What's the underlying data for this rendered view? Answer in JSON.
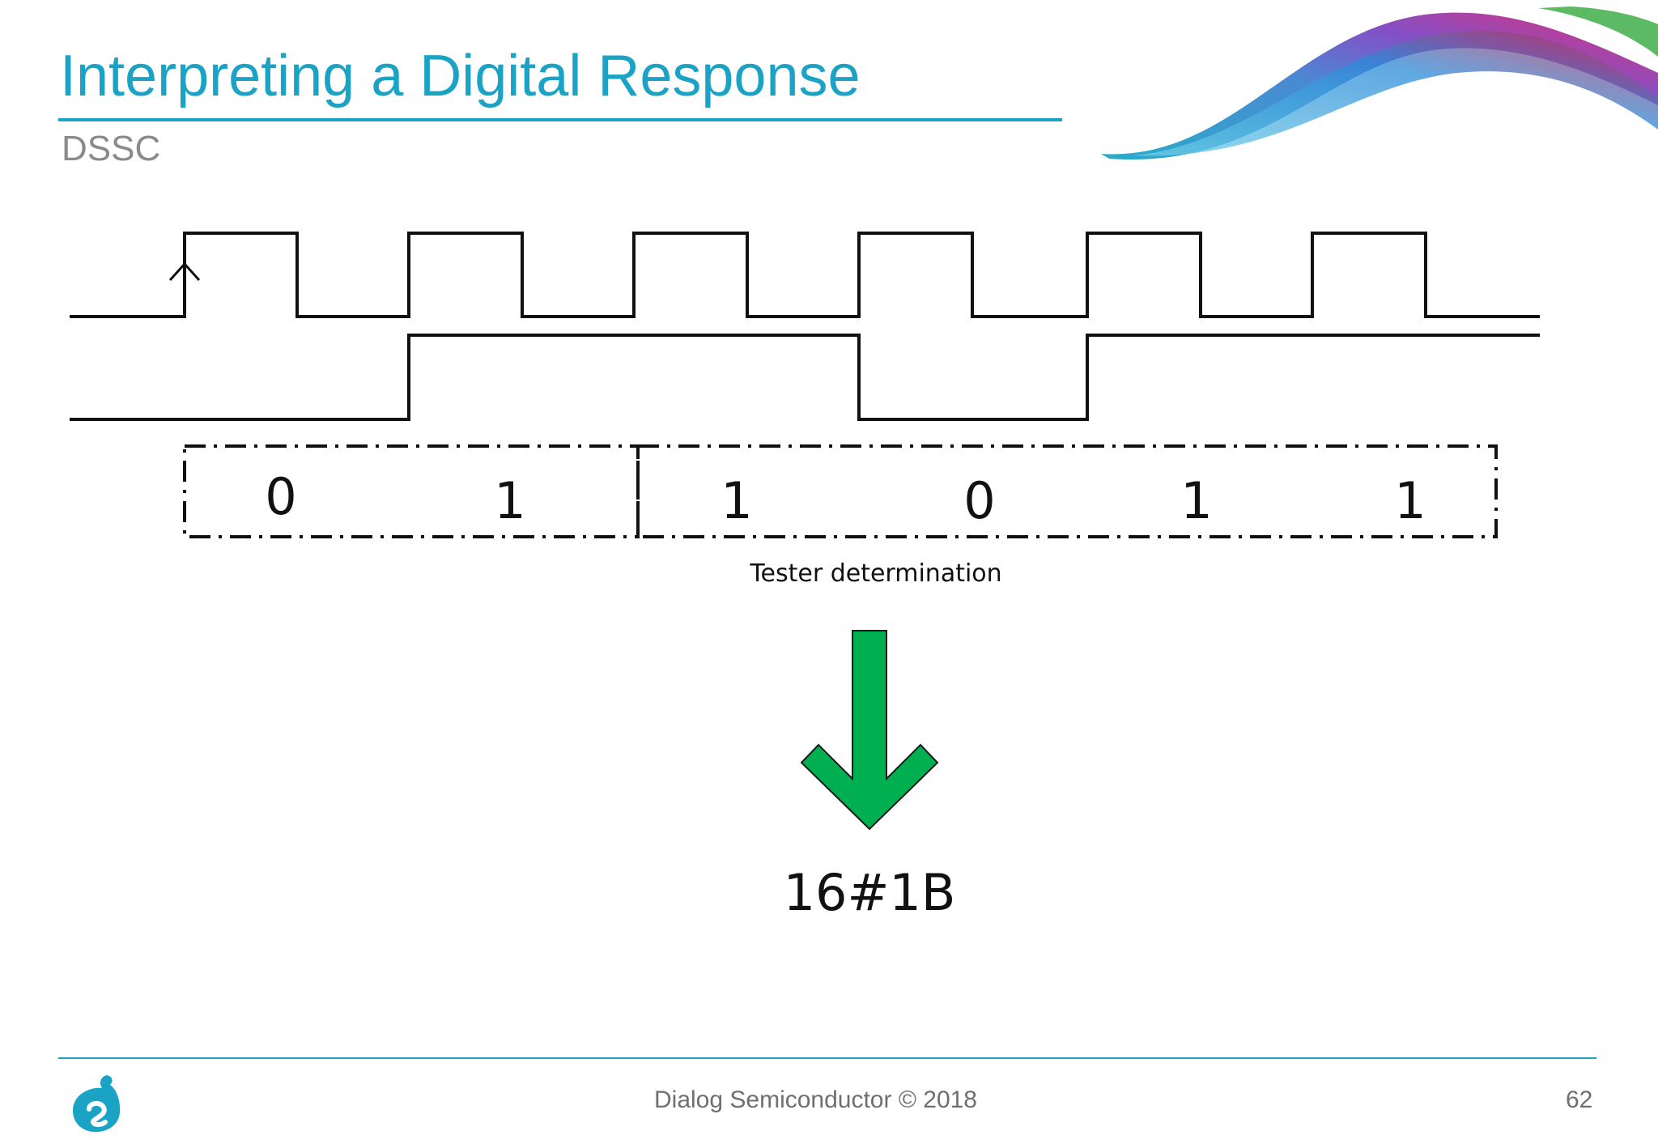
{
  "slide": {
    "title": "Interpreting a Digital Response",
    "subtitle": "DSSC",
    "footer": "Dialog Semiconductor © 2018",
    "page_number": "62"
  },
  "diagram": {
    "bits": [
      "0",
      "1",
      "1",
      "0",
      "1",
      "1"
    ],
    "bit_group_label": "Tester determination",
    "result": "16#1B",
    "arrow_color": "#00b050",
    "accent_color": "#1aa3c4"
  }
}
